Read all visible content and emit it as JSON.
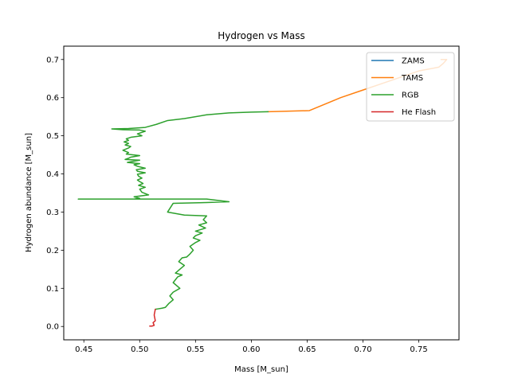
{
  "chart_data": {
    "type": "line",
    "title": "Hydrogen vs Mass",
    "xlabel": "Mass [M_sun]",
    "ylabel": "Hydrogen abundance [M_sun]",
    "xlim": [
      0.432,
      0.786
    ],
    "ylim": [
      -0.035,
      0.735
    ],
    "xticks": [
      0.45,
      0.5,
      0.55,
      0.6,
      0.65,
      0.7,
      0.75
    ],
    "xtick_labels": [
      "0.45",
      "0.50",
      "0.55",
      "0.60",
      "0.65",
      "0.70",
      "0.75"
    ],
    "yticks": [
      0.0,
      0.1,
      0.2,
      0.3,
      0.4,
      0.5,
      0.6,
      0.7
    ],
    "ytick_labels": [
      "0.0",
      "0.1",
      "0.2",
      "0.3",
      "0.4",
      "0.5",
      "0.6",
      "0.7"
    ],
    "grid": false,
    "legend_position": "top-right",
    "series": [
      {
        "name": "ZAMS",
        "color": "#1f77b4",
        "x": [
          0.77,
          0.77
        ],
        "y": [
          0.7,
          0.7
        ]
      },
      {
        "name": "TAMS",
        "color": "#ff7f0e",
        "x": [
          0.77,
          0.775,
          0.772,
          0.768,
          0.75,
          0.72,
          0.7,
          0.68,
          0.652,
          0.615
        ],
        "y": [
          0.7,
          0.7,
          0.69,
          0.68,
          0.67,
          0.64,
          0.62,
          0.6,
          0.566,
          0.563
        ]
      },
      {
        "name": "RGB",
        "color": "#2ca02c",
        "x": [
          0.615,
          0.6,
          0.58,
          0.56,
          0.54,
          0.525,
          0.515,
          0.505,
          0.49,
          0.475,
          0.485,
          0.5,
          0.505,
          0.498,
          0.502,
          0.492,
          0.488,
          0.49,
          0.486,
          0.49,
          0.487,
          0.492,
          0.49,
          0.485,
          0.49,
          0.488,
          0.5,
          0.492,
          0.49,
          0.487,
          0.5,
          0.494,
          0.489,
          0.5,
          0.495,
          0.498,
          0.505,
          0.497,
          0.498,
          0.505,
          0.498,
          0.499,
          0.502,
          0.498,
          0.5,
          0.503,
          0.499,
          0.505,
          0.5,
          0.502,
          0.508,
          0.495,
          0.5,
          0.495,
          0.445,
          0.5,
          0.52,
          0.56,
          0.58,
          0.56,
          0.53,
          0.525,
          0.54,
          0.56,
          0.557,
          0.56,
          0.553,
          0.559,
          0.55,
          0.556,
          0.55,
          0.548,
          0.554,
          0.55,
          0.545,
          0.548,
          0.545,
          0.542,
          0.538,
          0.535,
          0.54,
          0.536,
          0.532,
          0.538,
          0.534,
          0.53,
          0.536,
          0.53,
          0.527,
          0.53,
          0.526,
          0.523,
          0.52,
          0.516,
          0.514
        ],
        "y": [
          0.563,
          0.562,
          0.56,
          0.555,
          0.545,
          0.54,
          0.53,
          0.522,
          0.519,
          0.518,
          0.516,
          0.515,
          0.512,
          0.505,
          0.5,
          0.496,
          0.492,
          0.488,
          0.484,
          0.48,
          0.476,
          0.472,
          0.468,
          0.462,
          0.456,
          0.452,
          0.448,
          0.444,
          0.441,
          0.438,
          0.436,
          0.433,
          0.43,
          0.427,
          0.424,
          0.42,
          0.415,
          0.411,
          0.407,
          0.403,
          0.399,
          0.394,
          0.389,
          0.384,
          0.38,
          0.375,
          0.37,
          0.365,
          0.36,
          0.352,
          0.345,
          0.34,
          0.336,
          0.334,
          0.334,
          0.334,
          0.334,
          0.334,
          0.327,
          0.325,
          0.323,
          0.3,
          0.292,
          0.29,
          0.28,
          0.272,
          0.266,
          0.258,
          0.25,
          0.245,
          0.238,
          0.232,
          0.226,
          0.22,
          0.21,
          0.2,
          0.19,
          0.182,
          0.18,
          0.17,
          0.16,
          0.15,
          0.14,
          0.135,
          0.13,
          0.115,
          0.1,
          0.09,
          0.08,
          0.07,
          0.06,
          0.05,
          0.048,
          0.046,
          0.045
        ]
      },
      {
        "name": "He Flash",
        "color": "#d62728",
        "x": [
          0.514,
          0.513,
          0.514,
          0.512,
          0.513,
          0.511,
          0.509
        ],
        "y": [
          0.045,
          0.03,
          0.015,
          0.01,
          0.003,
          0.001,
          0.001
        ]
      }
    ]
  }
}
